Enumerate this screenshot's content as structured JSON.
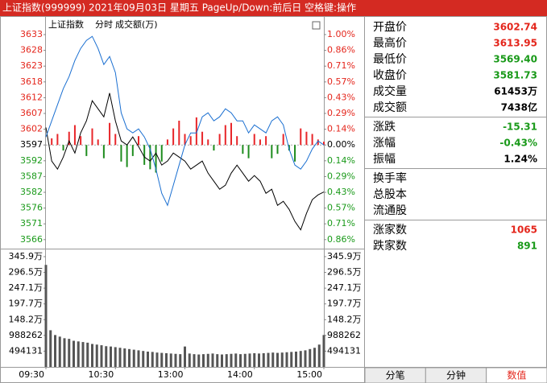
{
  "header": {
    "title": "上证指数(999999) 2021年09月03日 星期五 PageUp/Down:前后日 空格键:操作"
  },
  "chart_data": [
    {
      "type": "line",
      "header_items": [
        "上证指数",
        "分时",
        "成交额(万)"
      ],
      "xlim": [
        0,
        240
      ],
      "x": [
        0,
        5,
        10,
        15,
        20,
        25,
        30,
        35,
        40,
        45,
        50,
        55,
        60,
        65,
        70,
        75,
        80,
        85,
        90,
        95,
        100,
        105,
        110,
        115,
        120,
        125,
        130,
        135,
        140,
        145,
        150,
        155,
        160,
        165,
        170,
        175,
        180,
        185,
        190,
        195,
        200,
        205,
        210,
        215,
        220,
        225,
        230,
        235,
        240
      ],
      "series": [
        {
          "color": "#000000",
          "values": [
            3602.74,
            3591.8,
            3589.18,
            3593.11,
            3598.35,
            3594.42,
            3600.97,
            3604.9,
            3611.46,
            3608.84,
            3606.21,
            3613.95,
            3604.9,
            3598.35,
            3597.04,
            3599.66,
            3596.52,
            3593.11,
            3591.8,
            3594.42,
            3590.49,
            3591.8,
            3594.42,
            3593.11,
            3591.8,
            3589.18,
            3590.49,
            3591.8,
            3587.87,
            3585.24,
            3582.62,
            3583.93,
            3587.87,
            3590.49,
            3587.87,
            3585.24,
            3587.08,
            3585.24,
            3581.31,
            3582.62,
            3577.38,
            3578.69,
            3576.07,
            3572.14,
            3569.4,
            3574.76,
            3579.22,
            3580.79,
            3581.73
          ]
        },
        {
          "color": "#1a6fd1",
          "values": [
            3599.66,
            3604.9,
            3610.15,
            3615.39,
            3619.32,
            3624.56,
            3628.49,
            3631.12,
            3632.43,
            3628.49,
            3623.25,
            3625.87,
            3620.63,
            3607.52,
            3602.28,
            3600.97,
            3602.28,
            3599.66,
            3595.73,
            3589.18,
            3581.31,
            3577.38,
            3583.93,
            3590.49,
            3597.04,
            3600.97,
            3600.97,
            3606.21,
            3607.52,
            3604.9,
            3606.21,
            3608.84,
            3607.52,
            3604.9,
            3604.9,
            3600.97,
            3603.59,
            3602.28,
            3600.97,
            3604.9,
            3606.21,
            3603.59,
            3595.73,
            3590.49,
            3589.18,
            3591.8,
            3595.73,
            3598.35,
            3597.04
          ]
        },
        {
          "type": "bar",
          "axis": "y2",
          "up_color": "#e8262a",
          "down_color": "#1e8c1e",
          "x": [
            5,
            10,
            15,
            20,
            25,
            30,
            35,
            40,
            45,
            50,
            55,
            60,
            65,
            70,
            75,
            80,
            85,
            90,
            95,
            100,
            105,
            110,
            115,
            120,
            125,
            130,
            135,
            140,
            145,
            150,
            155,
            160,
            165,
            170,
            175,
            180,
            185,
            190,
            195,
            200,
            205,
            210,
            215,
            220,
            225,
            230,
            235,
            240
          ],
          "values": [
            0.06,
            0.1,
            -0.05,
            0.12,
            0.18,
            0.08,
            -0.1,
            0.15,
            0.05,
            -0.12,
            0.2,
            0.1,
            -0.15,
            -0.2,
            -0.1,
            0.08,
            -0.18,
            -0.22,
            -0.25,
            -0.15,
            0.05,
            0.15,
            0.22,
            0.1,
            0.08,
            0.25,
            0.12,
            0.05,
            -0.05,
            0.1,
            0.18,
            0.2,
            0.08,
            -0.08,
            -0.12,
            0.1,
            0.05,
            0.08,
            -0.12,
            -0.08,
            0.1,
            -0.05,
            -0.15,
            0.15,
            0.12,
            0.1,
            0.05,
            0.03
          ]
        }
      ],
      "ylim": [
        3563.8,
        3635.1
      ],
      "yticks": [
        {
          "value": 3633.01,
          "label": "3633"
        },
        {
          "value": 3627.87,
          "label": "3628"
        },
        {
          "value": 3622.73,
          "label": "3623"
        },
        {
          "value": 3617.59,
          "label": "3618"
        },
        {
          "value": 3612.45,
          "label": "3612"
        },
        {
          "value": 3607.32,
          "label": "3607"
        },
        {
          "value": 3602.18,
          "label": "3602"
        },
        {
          "value": 3597.04,
          "label": "3597"
        },
        {
          "value": 3591.9,
          "label": "3592"
        },
        {
          "value": 3586.76,
          "label": "3587"
        },
        {
          "value": 3581.62,
          "label": "3582"
        },
        {
          "value": 3576.49,
          "label": "3576"
        },
        {
          "value": 3571.35,
          "label": "3571"
        },
        {
          "value": 3566.21,
          "label": "3566"
        }
      ],
      "y2lim": [
        -0.924,
        1.058
      ],
      "y2ticks": [
        {
          "value": 1.0,
          "label": "1.00%"
        },
        {
          "value": 0.857,
          "label": "0.86%"
        },
        {
          "value": 0.714,
          "label": "0.71%"
        },
        {
          "value": 0.571,
          "label": "0.57%"
        },
        {
          "value": 0.429,
          "label": "0.43%"
        },
        {
          "value": 0.286,
          "label": "0.29%"
        },
        {
          "value": 0.143,
          "label": "0.14%"
        },
        {
          "value": 0,
          "label": "0.00%"
        },
        {
          "value": -0.143,
          "label": "0.14%"
        },
        {
          "value": -0.286,
          "label": "0.29%"
        },
        {
          "value": -0.429,
          "label": "0.43%"
        },
        {
          "value": -0.571,
          "label": "0.57%"
        },
        {
          "value": -0.714,
          "label": "0.71%"
        },
        {
          "value": -0.857,
          "label": "0.86%"
        }
      ],
      "tick_colors": {
        "up": "#e4261c",
        "flat": "#000000",
        "down": "#1a9a1a"
      }
    },
    {
      "type": "bar",
      "color": "#555555",
      "xlim": [
        0,
        240
      ],
      "x": [
        0,
        4,
        8,
        12,
        16,
        20,
        24,
        28,
        32,
        36,
        40,
        44,
        48,
        52,
        56,
        60,
        64,
        68,
        72,
        76,
        80,
        84,
        88,
        92,
        96,
        100,
        104,
        108,
        112,
        116,
        120,
        124,
        128,
        132,
        136,
        140,
        144,
        148,
        152,
        156,
        160,
        164,
        168,
        172,
        176,
        180,
        184,
        188,
        192,
        196,
        200,
        204,
        208,
        212,
        216,
        220,
        224,
        228,
        232,
        236,
        240
      ],
      "values": [
        3200000,
        1150000,
        1000000,
        950000,
        900000,
        880000,
        820000,
        800000,
        780000,
        760000,
        720000,
        700000,
        680000,
        650000,
        640000,
        620000,
        600000,
        580000,
        560000,
        540000,
        520000,
        500000,
        480000,
        470000,
        450000,
        440000,
        430000,
        420000,
        410000,
        400000,
        640000,
        420000,
        400000,
        390000,
        400000,
        410000,
        420000,
        400000,
        390000,
        400000,
        410000,
        420000,
        400000,
        410000,
        420000,
        430000,
        420000,
        430000,
        440000,
        450000,
        440000,
        450000,
        460000,
        470000,
        480000,
        500000,
        520000,
        560000,
        600000,
        700000,
        1000000
      ],
      "ylim": [
        0,
        3660000
      ],
      "yticks": [
        494131,
        988262,
        {
          "value": 1482393,
          "label": "148.2万"
        },
        {
          "value": 1976524,
          "label": "197.7万"
        },
        {
          "value": 2470655,
          "label": "247.1万"
        },
        {
          "value": 2964786,
          "label": "296.5万"
        },
        {
          "value": 3458917,
          "label": "345.9万"
        }
      ],
      "xticks": [
        {
          "value": 0,
          "label": "09:30"
        },
        {
          "value": 60,
          "label": "10:30"
        },
        {
          "value": 120,
          "label": "13:00"
        },
        {
          "value": 180,
          "label": "14:00"
        },
        {
          "value": 240,
          "label": "15:00"
        }
      ]
    }
  ],
  "quote_panel": {
    "groups": [
      [
        {
          "label": "开盘价",
          "value": "3602.74",
          "color": "#e4261c"
        },
        {
          "label": "最高价",
          "value": "3613.95",
          "color": "#e4261c"
        },
        {
          "label": "最低价",
          "value": "3569.40",
          "color": "#1a9a1a"
        },
        {
          "label": "收盘价",
          "value": "3581.73",
          "color": "#1a9a1a"
        },
        {
          "label": "成交量",
          "value": "61453万",
          "color": "#000000"
        },
        {
          "label": "成交额",
          "value": "7438亿",
          "color": "#000000"
        }
      ],
      [
        {
          "label": "涨跌",
          "value": "-15.31",
          "color": "#1a9a1a"
        },
        {
          "label": "涨幅",
          "value": "-0.43%",
          "color": "#1a9a1a"
        },
        {
          "label": "振幅",
          "value": "1.24%",
          "color": "#000000"
        }
      ],
      [
        {
          "label": "换手率"
        },
        {
          "label": "总股本"
        },
        {
          "label": "流通股"
        }
      ],
      [
        {
          "label": "涨家数",
          "value": "1065",
          "color": "#e4261c"
        },
        {
          "label": "跌家数",
          "value": "891",
          "color": "#1a9a1a"
        }
      ]
    ]
  },
  "tabs": [
    "分笔",
    "分钟",
    "数值"
  ],
  "active_tab": 2,
  "active_tab_color": "#e4261c"
}
